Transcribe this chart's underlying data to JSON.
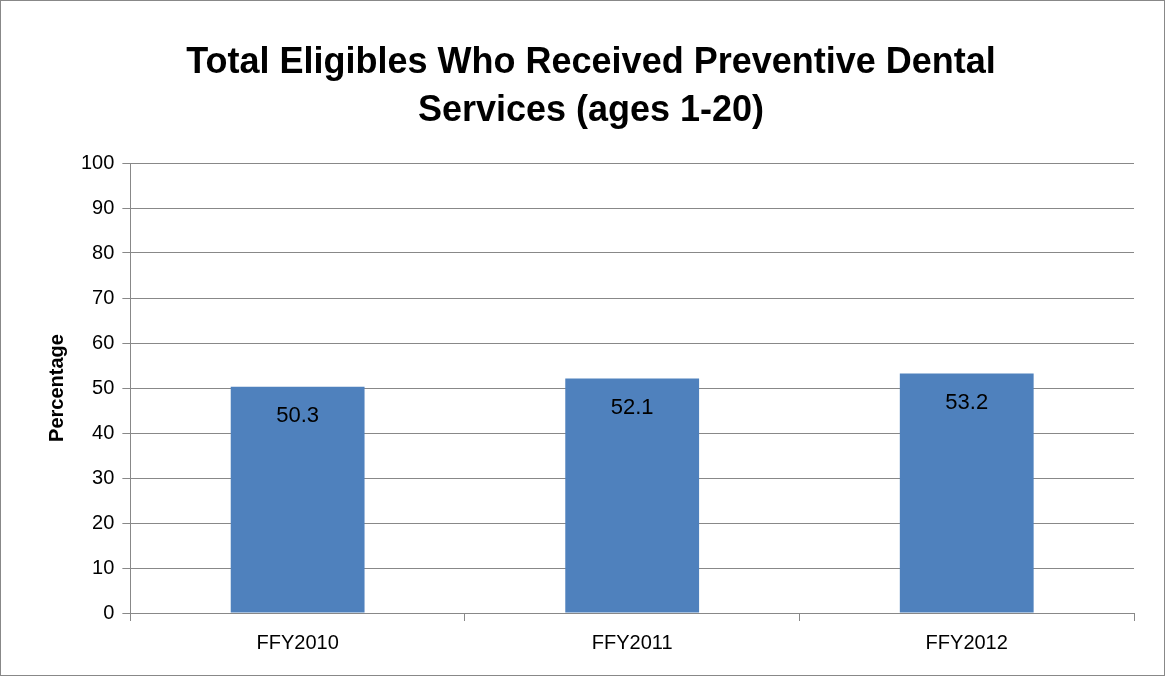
{
  "chart_data": {
    "type": "bar",
    "title": "Total Eligibles Who Received Preventive Dental Services (ages 1-20)",
    "ylabel": "Percentage",
    "categories": [
      "FFY2010",
      "FFY2011",
      "FFY2012"
    ],
    "values": [
      50.3,
      52.1,
      53.2
    ],
    "color": "#4f81bd",
    "ylim": [
      0,
      100
    ],
    "yticks": [
      0,
      10,
      20,
      30,
      40,
      50,
      60,
      70,
      80,
      90,
      100
    ],
    "grid": "y",
    "legend": false,
    "data_labels": true
  }
}
